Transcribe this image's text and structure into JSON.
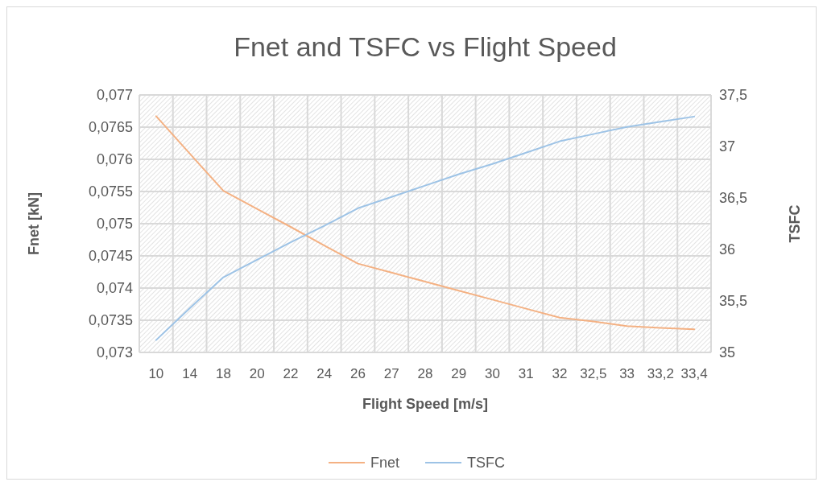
{
  "chart_data": {
    "type": "line",
    "title": "Fnet and TSFC vs Flight Speed",
    "xlabel": "Flight Speed [m/s]",
    "ylabel": "Fnet [kN]",
    "y2label": "TSFC",
    "categories": [
      "10",
      "14",
      "18",
      "20",
      "22",
      "24",
      "26",
      "27",
      "28",
      "29",
      "30",
      "31",
      "32",
      "32,5",
      "33",
      "33,2",
      "33,4"
    ],
    "series": [
      {
        "name": "Fnet",
        "color": "#f4b183",
        "values": [
          0.07667,
          0.07609,
          0.07551,
          0.07523,
          0.07495,
          0.07466,
          0.07438,
          0.07424,
          0.0741,
          0.07396,
          0.07382,
          0.07368,
          0.07354,
          0.07348,
          0.07341,
          0.07338,
          0.07336
        ]
      },
      {
        "name": "TSFC",
        "color": "#9dc3e6",
        "axis": "y2",
        "values": [
          35.12,
          35.43,
          35.73,
          35.9,
          36.07,
          36.23,
          36.4,
          36.51,
          36.62,
          36.73,
          36.83,
          36.94,
          37.05,
          37.12,
          37.19,
          37.24,
          37.29
        ]
      }
    ],
    "ylim": [
      0.073,
      0.077
    ],
    "yticks": [
      {
        "value": 0.073,
        "label": "0,073"
      },
      {
        "value": 0.0735,
        "label": "0,0735"
      },
      {
        "value": 0.074,
        "label": "0,074"
      },
      {
        "value": 0.0745,
        "label": "0,0745"
      },
      {
        "value": 0.075,
        "label": "0,075"
      },
      {
        "value": 0.0755,
        "label": "0,0755"
      },
      {
        "value": 0.076,
        "label": "0,076"
      },
      {
        "value": 0.0765,
        "label": "0,0765"
      },
      {
        "value": 0.077,
        "label": "0,077"
      }
    ],
    "y2lim": [
      35,
      37.5
    ],
    "y2ticks": [
      35,
      {
        "value": 35.5,
        "label": "35,5"
      },
      36,
      {
        "value": 36.5,
        "label": "36,5"
      },
      37,
      {
        "value": 37.5,
        "label": "37,5"
      }
    ],
    "grid": true,
    "legend": "bottom",
    "marker": "none",
    "line_style": "solid"
  }
}
